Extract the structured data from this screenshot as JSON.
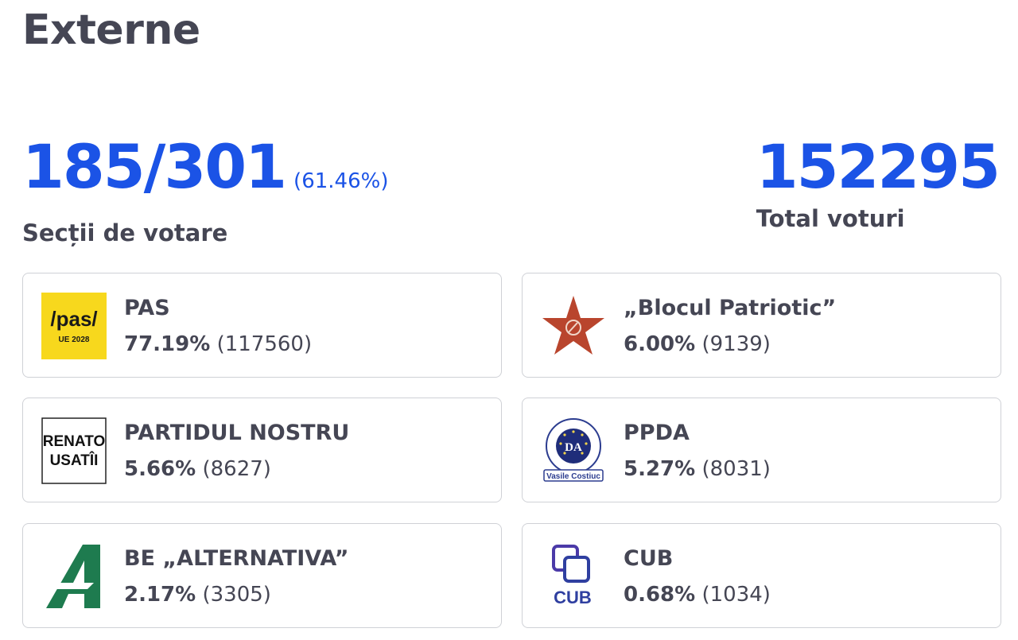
{
  "title": "Externe",
  "stations": {
    "value": "185/301",
    "percent": "(61.46%)",
    "label": "Secții de votare"
  },
  "total": {
    "value": "152295",
    "label": "Total voturi"
  },
  "colors": {
    "accent": "#1b53e6",
    "text": "#454654",
    "border": "#cfd1d6"
  },
  "parties": [
    {
      "name": "PAS",
      "percent": "77.19%",
      "votes": "(117560)",
      "logo": "pas-logo",
      "logo_text": "/pas/",
      "logo_sub": "UE 2028"
    },
    {
      "name": "„Blocul Patriotic”",
      "percent": "6.00%",
      "votes": "(9139)",
      "logo": "red-star-logo"
    },
    {
      "name": "PARTIDUL NOSTRU",
      "percent": "5.66%",
      "votes": "(8627)",
      "logo": "renato-usatii-logo",
      "logo_text": "RENATO",
      "logo_sub": "USATÎI"
    },
    {
      "name": "PPDA",
      "percent": "5.27%",
      "votes": "(8031)",
      "logo": "ppda-logo",
      "logo_text": "DA",
      "logo_sub": "Vasile Costiuc"
    },
    {
      "name": "BE „ALTERNATIVA”",
      "percent": "2.17%",
      "votes": "(3305)",
      "logo": "alternativa-logo"
    },
    {
      "name": "CUB",
      "percent": "0.68%",
      "votes": "(1034)",
      "logo": "cub-logo",
      "logo_text": "CUB"
    }
  ]
}
